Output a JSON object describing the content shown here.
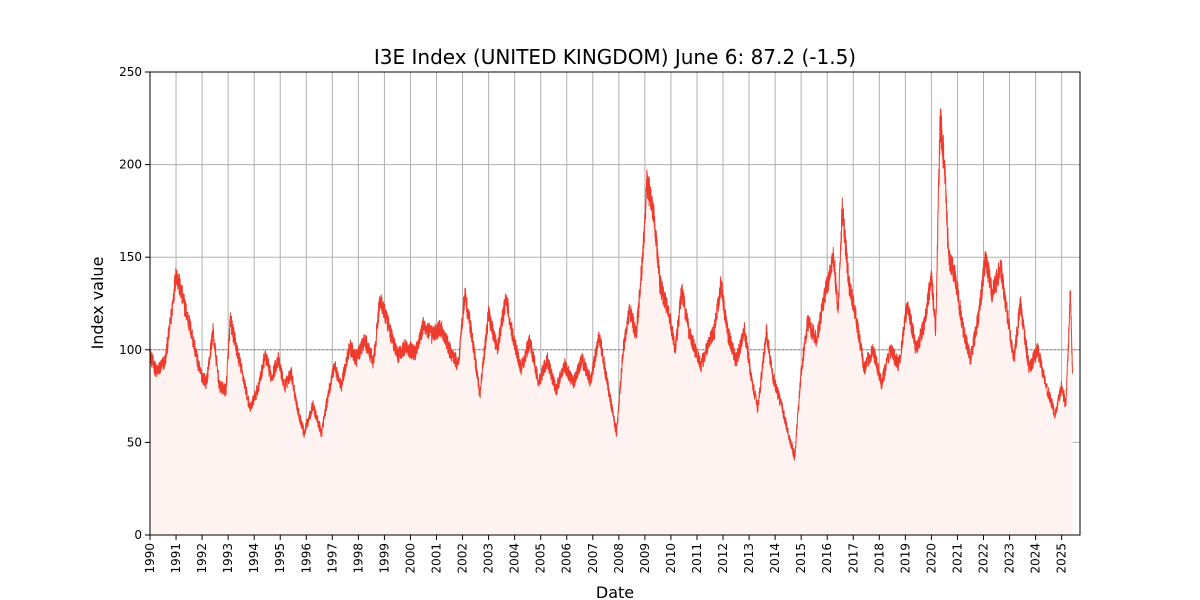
{
  "chart_data": {
    "type": "line",
    "title": "I3E Index (UNITED KINGDOM) June 6: 87.2 (-1.5)",
    "xlabel": "Date",
    "ylabel": "Index value",
    "xlim": [
      "1990-01-01",
      "2025-09-15"
    ],
    "ylim": [
      0,
      250
    ],
    "grid": true,
    "reference_line": {
      "y": 100,
      "style": "dotted",
      "color": "#888888"
    },
    "colors": {
      "line": "#ee3b2e",
      "fill": "#fff3f2",
      "grid": "#b0b0b0"
    },
    "x_ticks": [
      "1990",
      "1991",
      "1992",
      "1993",
      "1994",
      "1995",
      "1996",
      "1997",
      "1998",
      "1999",
      "2000",
      "2001",
      "2002",
      "2003",
      "2004",
      "2005",
      "2006",
      "2007",
      "2008",
      "2009",
      "2010",
      "2011",
      "2012",
      "2013",
      "2014",
      "2015",
      "2016",
      "2017",
      "2018",
      "2019",
      "2020",
      "2021",
      "2022",
      "2023",
      "2024",
      "2025"
    ],
    "y_ticks": [
      0,
      50,
      100,
      150,
      200,
      250
    ],
    "series": [
      {
        "points": [
          [
            "1990-01",
            97
          ],
          [
            "1990-04",
            88
          ],
          [
            "1990-08",
            94
          ],
          [
            "1990-11",
            120
          ],
          [
            "1991-01",
            142
          ],
          [
            "1991-04",
            128
          ],
          [
            "1991-08",
            110
          ],
          [
            "1991-12",
            88
          ],
          [
            "1992-03",
            82
          ],
          [
            "1992-06",
            110
          ],
          [
            "1992-09",
            80
          ],
          [
            "1992-12",
            78
          ],
          [
            "1993-02",
            116
          ],
          [
            "1993-05",
            100
          ],
          [
            "1993-08",
            85
          ],
          [
            "1993-11",
            68
          ],
          [
            "1994-03",
            80
          ],
          [
            "1994-06",
            97
          ],
          [
            "1994-09",
            85
          ],
          [
            "1994-12",
            95
          ],
          [
            "1995-03",
            80
          ],
          [
            "1995-06",
            88
          ],
          [
            "1995-09",
            68
          ],
          [
            "1995-12",
            55
          ],
          [
            "1996-04",
            70
          ],
          [
            "1996-08",
            55
          ],
          [
            "1996-11",
            75
          ],
          [
            "1997-02",
            92
          ],
          [
            "1997-05",
            80
          ],
          [
            "1997-09",
            102
          ],
          [
            "1997-12",
            95
          ],
          [
            "1998-04",
            105
          ],
          [
            "1998-08",
            93
          ],
          [
            "1998-11",
            128
          ],
          [
            "1999-03",
            112
          ],
          [
            "1999-07",
            97
          ],
          [
            "1999-11",
            102
          ],
          [
            "2000-03",
            98
          ],
          [
            "2000-07",
            113
          ],
          [
            "2000-11",
            108
          ],
          [
            "2001-03",
            112
          ],
          [
            "2001-07",
            100
          ],
          [
            "2001-11",
            92
          ],
          [
            "2002-02",
            130
          ],
          [
            "2002-05",
            110
          ],
          [
            "2002-09",
            76
          ],
          [
            "2003-01",
            120
          ],
          [
            "2003-05",
            100
          ],
          [
            "2003-09",
            128
          ],
          [
            "2003-12",
            108
          ],
          [
            "2004-04",
            90
          ],
          [
            "2004-08",
            105
          ],
          [
            "2004-12",
            82
          ],
          [
            "2005-04",
            95
          ],
          [
            "2005-08",
            78
          ],
          [
            "2005-12",
            92
          ],
          [
            "2006-04",
            82
          ],
          [
            "2006-08",
            95
          ],
          [
            "2006-12",
            83
          ],
          [
            "2007-04",
            108
          ],
          [
            "2007-08",
            80
          ],
          [
            "2007-12",
            55
          ],
          [
            "2008-03",
            100
          ],
          [
            "2008-06",
            122
          ],
          [
            "2008-09",
            108
          ],
          [
            "2008-12",
            150
          ],
          [
            "2009-02",
            190
          ],
          [
            "2009-05",
            176
          ],
          [
            "2009-08",
            135
          ],
          [
            "2009-12",
            120
          ],
          [
            "2010-03",
            100
          ],
          [
            "2010-06",
            132
          ],
          [
            "2010-09",
            112
          ],
          [
            "2010-12",
            100
          ],
          [
            "2011-03",
            92
          ],
          [
            "2011-06",
            102
          ],
          [
            "2011-09",
            110
          ],
          [
            "2011-12",
            136
          ],
          [
            "2012-03",
            110
          ],
          [
            "2012-07",
            94
          ],
          [
            "2012-11",
            110
          ],
          [
            "2013-02",
            85
          ],
          [
            "2013-05",
            68
          ],
          [
            "2013-09",
            110
          ],
          [
            "2013-12",
            85
          ],
          [
            "2014-04",
            70
          ],
          [
            "2014-07",
            55
          ],
          [
            "2014-10",
            42
          ],
          [
            "2015-01",
            88
          ],
          [
            "2015-04",
            115
          ],
          [
            "2015-08",
            105
          ],
          [
            "2015-12",
            130
          ],
          [
            "2016-04",
            150
          ],
          [
            "2016-06",
            120
          ],
          [
            "2016-08",
            178
          ],
          [
            "2016-11",
            135
          ],
          [
            "2017-02",
            120
          ],
          [
            "2017-06",
            90
          ],
          [
            "2017-10",
            100
          ],
          [
            "2018-02",
            82
          ],
          [
            "2018-06",
            100
          ],
          [
            "2018-10",
            92
          ],
          [
            "2019-02",
            125
          ],
          [
            "2019-06",
            100
          ],
          [
            "2019-10",
            115
          ],
          [
            "2020-01",
            140
          ],
          [
            "2020-03",
            110
          ],
          [
            "2020-05",
            225
          ],
          [
            "2020-07",
            200
          ],
          [
            "2020-09",
            150
          ],
          [
            "2020-12",
            140
          ],
          [
            "2021-03",
            115
          ],
          [
            "2021-07",
            95
          ],
          [
            "2021-11",
            120
          ],
          [
            "2022-02",
            150
          ],
          [
            "2022-05",
            130
          ],
          [
            "2022-09",
            145
          ],
          [
            "2022-12",
            118
          ],
          [
            "2023-03",
            95
          ],
          [
            "2023-06",
            125
          ],
          [
            "2023-10",
            90
          ],
          [
            "2024-02",
            100
          ],
          [
            "2024-06",
            80
          ],
          [
            "2024-10",
            65
          ],
          [
            "2025-01",
            80
          ],
          [
            "2025-03",
            70
          ],
          [
            "2025-05",
            130
          ],
          [
            "2025-06",
            87.2
          ]
        ]
      }
    ]
  }
}
